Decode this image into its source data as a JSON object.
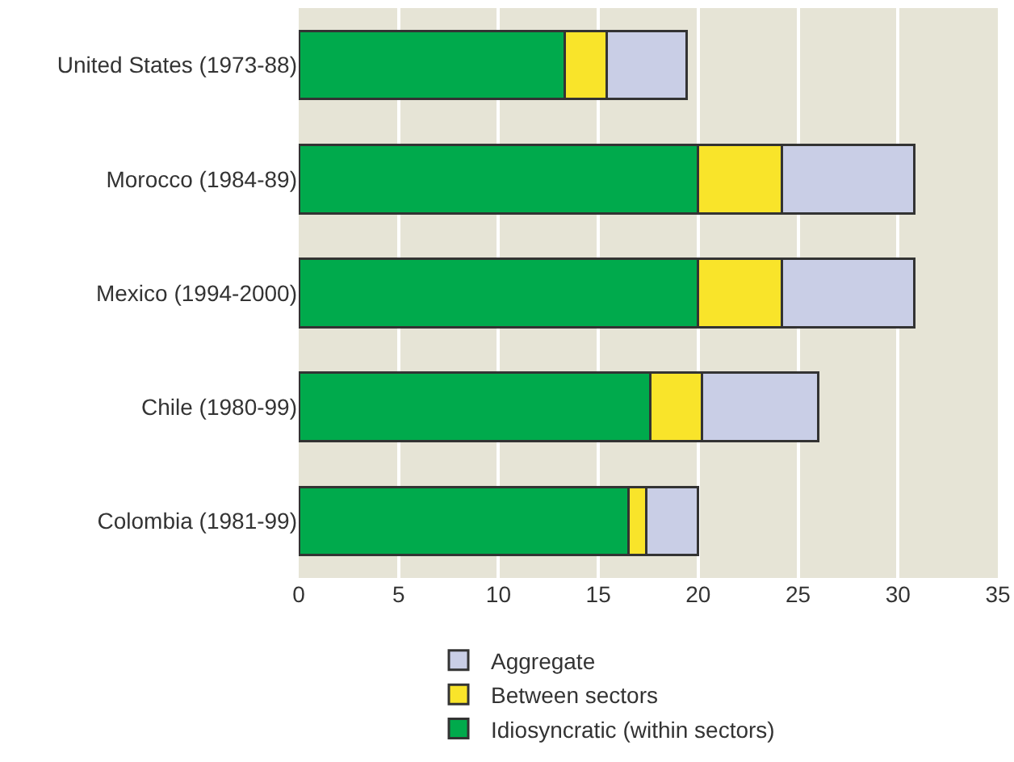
{
  "chart_data": {
    "type": "bar",
    "orientation": "horizontal",
    "stacked": true,
    "categories": [
      "United States (1973-88)",
      "Morocco (1984-89)",
      "Mexico (1994-2000)",
      "Chile (1980-99)",
      "Colombia (1981-99)"
    ],
    "series": [
      {
        "name": "Idiosyncratic (within sectors)",
        "color": "#00aa4c",
        "values": [
          13.3,
          20,
          20,
          17.6,
          16.5
        ]
      },
      {
        "name": "Between sectors",
        "color": "#f9e42a",
        "values": [
          2.1,
          4.2,
          4.2,
          2.6,
          0.9
        ]
      },
      {
        "name": "Aggregate",
        "color": "#c9cee6",
        "values": [
          4.0,
          6.6,
          6.6,
          5.8,
          2.6
        ]
      }
    ],
    "xlim": [
      0,
      35
    ],
    "xticks": [
      0,
      5,
      10,
      15,
      20,
      25,
      30,
      35
    ],
    "grid": "x",
    "legend": "bottom"
  }
}
